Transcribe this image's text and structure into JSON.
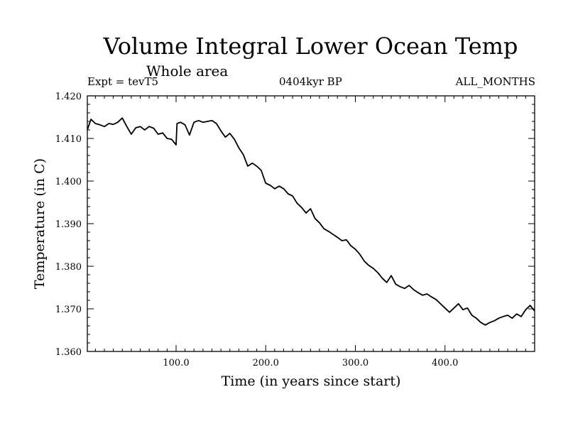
{
  "chart_data": {
    "type": "line",
    "title": "Volume Integral Lower Ocean Temp",
    "subtitle": "Whole area",
    "annotations": {
      "left": "Expt = tevT5",
      "center": "0404kyr BP",
      "right": "ALL_MONTHS"
    },
    "xlabel": "Time (in years since start)",
    "ylabel": "Temperature (in C)",
    "xlim": [
      1,
      500
    ],
    "ylim": [
      1.36,
      1.42
    ],
    "x_ticks": [
      100,
      200,
      300,
      400
    ],
    "x_tick_labels": [
      "100.0",
      "200.0",
      "300.0",
      "400.0"
    ],
    "y_ticks": [
      1.36,
      1.37,
      1.38,
      1.39,
      1.4,
      1.41,
      1.42
    ],
    "y_tick_labels": [
      "1.360",
      "1.370",
      "1.380",
      "1.390",
      "1.400",
      "1.410",
      "1.420"
    ],
    "grid": false,
    "series": [
      {
        "color": "#000000",
        "x": [
          1,
          5,
          10,
          15,
          20,
          25,
          30,
          35,
          40,
          45,
          50,
          55,
          60,
          65,
          70,
          75,
          80,
          85,
          90,
          95,
          100,
          101,
          105,
          110,
          115,
          120,
          125,
          130,
          135,
          140,
          145,
          150,
          155,
          160,
          165,
          170,
          175,
          180,
          185,
          190,
          195,
          200,
          205,
          210,
          215,
          220,
          225,
          230,
          235,
          240,
          245,
          250,
          255,
          260,
          265,
          270,
          275,
          280,
          285,
          290,
          295,
          300,
          305,
          310,
          315,
          320,
          325,
          330,
          335,
          340,
          345,
          350,
          355,
          360,
          365,
          370,
          375,
          380,
          385,
          390,
          395,
          400,
          405,
          410,
          415,
          420,
          425,
          430,
          435,
          440,
          445,
          450,
          455,
          460,
          465,
          470,
          475,
          480,
          485,
          490,
          495,
          500
        ],
        "y": [
          1.412,
          1.4145,
          1.4135,
          1.4132,
          1.4128,
          1.4135,
          1.4133,
          1.4138,
          1.4148,
          1.4128,
          1.411,
          1.4125,
          1.4128,
          1.412,
          1.4128,
          1.4124,
          1.411,
          1.4113,
          1.41,
          1.4098,
          1.4085,
          1.4135,
          1.4138,
          1.4132,
          1.4108,
          1.4138,
          1.4142,
          1.4138,
          1.414,
          1.4142,
          1.4135,
          1.4118,
          1.4103,
          1.4112,
          1.4098,
          1.4078,
          1.4062,
          1.4035,
          1.4042,
          1.4035,
          1.4025,
          1.3995,
          1.399,
          1.3982,
          1.3988,
          1.3982,
          1.397,
          1.3965,
          1.3948,
          1.3938,
          1.3925,
          1.3935,
          1.3912,
          1.3902,
          1.3888,
          1.3882,
          1.3875,
          1.3868,
          1.386,
          1.3862,
          1.3848,
          1.384,
          1.3828,
          1.3812,
          1.3802,
          1.3795,
          1.3785,
          1.3772,
          1.3762,
          1.3778,
          1.3758,
          1.3752,
          1.3748,
          1.3755,
          1.3745,
          1.3738,
          1.3732,
          1.3735,
          1.3728,
          1.3722,
          1.3712,
          1.3702,
          1.3692,
          1.3702,
          1.3712,
          1.3698,
          1.3702,
          1.3685,
          1.3678,
          1.3668,
          1.3662,
          1.3668,
          1.3672,
          1.3678,
          1.3682,
          1.3685,
          1.3678,
          1.3688,
          1.3682,
          1.3698,
          1.3708,
          1.3695
        ]
      }
    ]
  }
}
